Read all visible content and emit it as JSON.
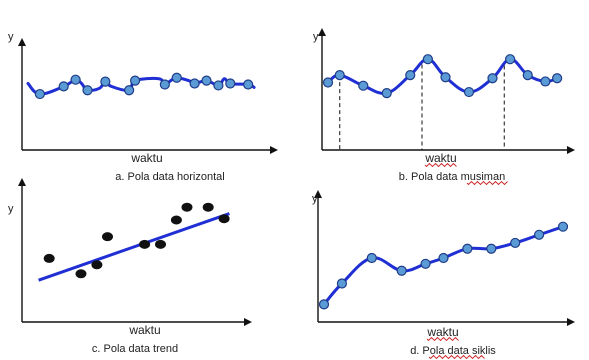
{
  "colors": {
    "line": "#1f2fd4",
    "marker_fill": "#5b9bd5",
    "marker_stroke": "#1f3c88",
    "dot": "#111111",
    "axis": "#111111"
  },
  "chart_data": [
    {
      "type": "line",
      "title": "a. Pola data horizontal",
      "xlabel": "waktu",
      "ylabel": "y",
      "ylim": [
        0,
        10
      ],
      "xlim": [
        0,
        20
      ],
      "grid": false,
      "series": [
        {
          "x": [
            0,
            1,
            3,
            4,
            4.5,
            5,
            6,
            6.5,
            7,
            8.5,
            9,
            11,
            11.5,
            12,
            12.5,
            13.5,
            14,
            15,
            16,
            16.5,
            17,
            18.5,
            19
          ],
          "y": [
            6.3,
            5.2,
            6.0,
            6.7,
            6.3,
            5.6,
            5.8,
            6.5,
            6.0,
            5.6,
            6.6,
            6.8,
            6.2,
            6.6,
            6.9,
            6.6,
            6.3,
            6.6,
            6.1,
            6.8,
            6.3,
            6.2,
            5.9
          ]
        }
      ],
      "markers_at": [
        1,
        3,
        4,
        5,
        6.5,
        8.5,
        9,
        11.5,
        12.5,
        14,
        15,
        16,
        17,
        18.5
      ]
    },
    {
      "type": "line",
      "title": "b. Pola data musiman",
      "xlabel": "waktu",
      "ylabel": "y",
      "ylim": [
        0,
        10
      ],
      "xlim": [
        0,
        20
      ],
      "grid": false,
      "series": [
        {
          "x": [
            0,
            1,
            3,
            5,
            7,
            8.5,
            10,
            12,
            14,
            15.5,
            17,
            18.5,
            19.5
          ],
          "y": [
            5.8,
            6.5,
            5.5,
            4.8,
            6.5,
            8.0,
            6.3,
            4.9,
            6.2,
            8.0,
            6.5,
            5.9,
            6.2
          ]
        }
      ],
      "seasonal_peaks_x": [
        1,
        8,
        15
      ]
    },
    {
      "type": "scatter",
      "title": "c. Pola data trend",
      "xlabel": "waktu",
      "ylabel": "y",
      "ylim": [
        0,
        10
      ],
      "xlim": [
        0,
        20
      ],
      "grid": false,
      "series": [
        {
          "x": [
            2,
            5,
            6.5,
            7.5,
            11,
            12.5,
            14,
            15,
            17,
            18.5
          ],
          "y": [
            4.5,
            3.3,
            4.0,
            6.2,
            5.6,
            5.6,
            7.5,
            8.5,
            8.5,
            7.6
          ]
        }
      ],
      "trendline": {
        "x": [
          1,
          19
        ],
        "y": [
          2.8,
          8.0
        ]
      }
    },
    {
      "type": "line",
      "title": "d. Pola data siklis",
      "xlabel": "waktu",
      "ylabel": "y",
      "ylim": [
        0,
        10
      ],
      "xlim": [
        0,
        20
      ],
      "grid": false,
      "series": [
        {
          "x": [
            0,
            1.5,
            4,
            6.5,
            8.5,
            10,
            12,
            14,
            16,
            18,
            20
          ],
          "y": [
            1.0,
            2.8,
            5.0,
            3.9,
            4.5,
            5.0,
            5.8,
            5.8,
            6.3,
            7.0,
            7.7
          ]
        }
      ],
      "markers_at": [
        0,
        1.5,
        4,
        6.5,
        8.5,
        10,
        12,
        14,
        16,
        18,
        20
      ]
    }
  ]
}
